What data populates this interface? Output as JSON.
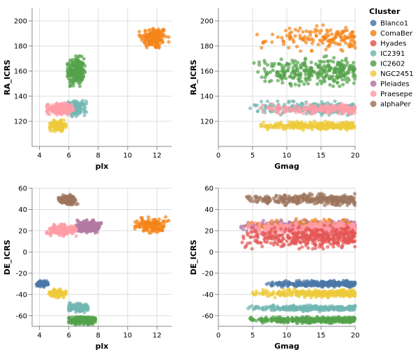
{
  "legend": {
    "title": "Cluster",
    "entries": [
      {
        "name": "Blanco1",
        "color": "#4c78a8"
      },
      {
        "name": "ComaBer",
        "color": "#f58518"
      },
      {
        "name": "Hyades",
        "color": "#e45756"
      },
      {
        "name": "IC2391",
        "color": "#72b7b2"
      },
      {
        "name": "IC2602",
        "color": "#54a24b"
      },
      {
        "name": "NGC2451",
        "color": "#eeca3b"
      },
      {
        "name": "Pleiades",
        "color": "#b279a2"
      },
      {
        "name": "Praesepe",
        "color": "#ff9da6"
      },
      {
        "name": "alphaPer",
        "color": "#9d755d"
      }
    ]
  },
  "chart_data": [
    {
      "type": "scatter",
      "panel": "top-left",
      "xlabel": "plx",
      "ylabel": "RA_ICRS",
      "xlim": [
        3.5,
        13
      ],
      "ylim": [
        100,
        210
      ],
      "xticks": [
        4,
        6,
        8,
        10,
        12
      ],
      "yticks": [
        120,
        140,
        160,
        180,
        200
      ],
      "grid": true,
      "series": [
        {
          "name": "ComaBer",
          "x_range": [
            10.8,
            12.8
          ],
          "y_range": [
            176,
            197
          ],
          "n": 150
        },
        {
          "name": "IC2602",
          "x_range": [
            5.9,
            7.1
          ],
          "y_range": [
            148,
            172
          ],
          "n": 250
        },
        {
          "name": "IC2391",
          "x_range": [
            5.8,
            7.2
          ],
          "y_range": [
            124,
            137
          ],
          "n": 150
        },
        {
          "name": "Praesepe",
          "x_range": [
            4.5,
            6.3
          ],
          "y_range": [
            125,
            135
          ],
          "n": 200
        },
        {
          "name": "NGC2451",
          "x_range": [
            4.7,
            5.8
          ],
          "y_range": [
            112,
            121
          ],
          "n": 150
        }
      ]
    },
    {
      "type": "scatter",
      "panel": "top-right",
      "xlabel": "Gmag",
      "ylabel": "RA_ICRS",
      "xlim": [
        0,
        20
      ],
      "ylim": [
        100,
        210
      ],
      "xticks": [
        0,
        5,
        10,
        15,
        20
      ],
      "yticks": [
        120,
        140,
        160,
        180,
        200
      ],
      "grid": true,
      "series": [
        {
          "name": "ComaBer",
          "x_range": [
            4.5,
            20
          ],
          "y_range": [
            176,
            197
          ],
          "n": 150
        },
        {
          "name": "IC2602",
          "x_range": [
            4.5,
            20
          ],
          "y_range": [
            148,
            172
          ],
          "n": 300
        },
        {
          "name": "IC2391",
          "x_range": [
            4.5,
            20
          ],
          "y_range": [
            125,
            136
          ],
          "n": 220
        },
        {
          "name": "Praesepe",
          "x_range": [
            6,
            20
          ],
          "y_range": [
            126,
            134
          ],
          "n": 200
        },
        {
          "name": "NGC2451",
          "x_range": [
            5,
            20
          ],
          "y_range": [
            113,
            120
          ],
          "n": 280
        }
      ]
    },
    {
      "type": "scatter",
      "panel": "bottom-left",
      "xlabel": "plx",
      "ylabel": "DE_ICRS",
      "xlim": [
        3.5,
        13
      ],
      "ylim": [
        -70,
        60
      ],
      "xticks": [
        4,
        6,
        8,
        10,
        12
      ],
      "yticks": [
        -60,
        -40,
        -20,
        0,
        20,
        40,
        60
      ],
      "grid": true,
      "series": [
        {
          "name": "alphaPer",
          "x_range": [
            5.3,
            6.6
          ],
          "y_range": [
            44,
            54
          ],
          "n": 150
        },
        {
          "name": "Pleiades",
          "x_range": [
            6.5,
            8.2
          ],
          "y_range": [
            18,
            30
          ],
          "n": 250
        },
        {
          "name": "ComaBer",
          "x_range": [
            10.5,
            12.8
          ],
          "y_range": [
            18,
            33
          ],
          "n": 150
        },
        {
          "name": "Praesepe",
          "x_range": [
            4.5,
            6.5
          ],
          "y_range": [
            15,
            26
          ],
          "n": 200
        },
        {
          "name": "Blanco1",
          "x_range": [
            3.8,
            4.6
          ],
          "y_range": [
            -33,
            -27
          ],
          "n": 100
        },
        {
          "name": "NGC2451",
          "x_range": [
            4.6,
            5.8
          ],
          "y_range": [
            -43,
            -35
          ],
          "n": 150
        },
        {
          "name": "IC2391",
          "x_range": [
            6.0,
            7.3
          ],
          "y_range": [
            -57,
            -48
          ],
          "n": 150
        },
        {
          "name": "IC2602",
          "x_range": [
            6.0,
            7.8
          ],
          "y_range": [
            -68,
            -60
          ],
          "n": 250
        }
      ]
    },
    {
      "type": "scatter",
      "panel": "bottom-right",
      "xlabel": "Gmag",
      "ylabel": "DE_ICRS",
      "xlim": [
        0,
        20
      ],
      "ylim": [
        -70,
        60
      ],
      "xticks": [
        0,
        5,
        10,
        15,
        20
      ],
      "yticks": [
        -60,
        -40,
        -20,
        0,
        20,
        40,
        60
      ],
      "grid": true,
      "series": [
        {
          "name": "alphaPer",
          "x_range": [
            3.5,
            20
          ],
          "y_range": [
            44,
            55
          ],
          "n": 300
        },
        {
          "name": "Pleiades",
          "x_range": [
            2.8,
            20
          ],
          "y_range": [
            20,
            30
          ],
          "n": 400
        },
        {
          "name": "ComaBer",
          "x_range": [
            3.5,
            20
          ],
          "y_range": [
            20,
            32
          ],
          "n": 100
        },
        {
          "name": "Praesepe",
          "x_range": [
            3.5,
            20
          ],
          "y_range": [
            16,
            28
          ],
          "n": 400
        },
        {
          "name": "Hyades",
          "x_range": [
            2.5,
            20
          ],
          "y_range": [
            3,
            25
          ],
          "n": 400
        },
        {
          "name": "Blanco1",
          "x_range": [
            7,
            20
          ],
          "y_range": [
            -33,
            -27
          ],
          "n": 300
        },
        {
          "name": "NGC2451",
          "x_range": [
            4.5,
            20
          ],
          "y_range": [
            -43,
            -35
          ],
          "n": 300
        },
        {
          "name": "IC2391",
          "x_range": [
            4,
            20
          ],
          "y_range": [
            -56,
            -50
          ],
          "n": 300
        },
        {
          "name": "IC2602",
          "x_range": [
            4,
            20
          ],
          "y_range": [
            -67,
            -61
          ],
          "n": 400
        }
      ]
    }
  ]
}
